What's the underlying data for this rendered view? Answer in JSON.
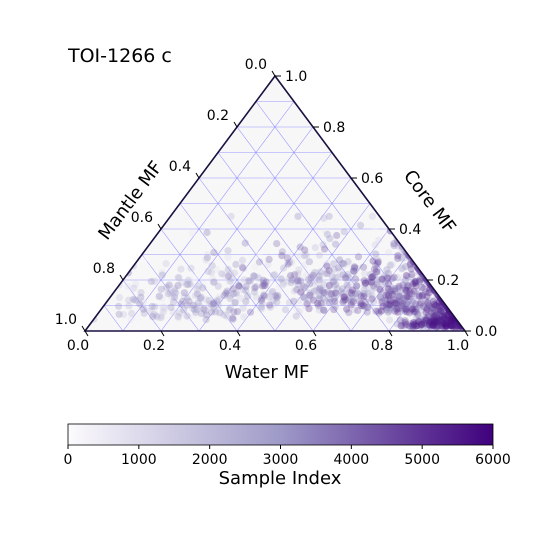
{
  "chart_data": {
    "type": "scatter",
    "title": "TOI-1266 c",
    "axes": {
      "water": {
        "label": "Water MF",
        "ticks": [
          "0.0",
          "0.2",
          "0.4",
          "0.6",
          "0.8",
          "1.0"
        ]
      },
      "core": {
        "label": "Core MF",
        "ticks": [
          "0.0",
          "0.2",
          "0.4",
          "0.6",
          "0.8",
          "1.0"
        ]
      },
      "mantle": {
        "label": "Mantle MF",
        "ticks": [
          "0.0",
          "0.2",
          "0.4",
          "0.6",
          "0.8",
          "1.0"
        ]
      }
    },
    "grid": true,
    "grid_step": 0.1,
    "colors": {
      "grid": "#8080ff",
      "frame": "#1a1040",
      "background": "#f7f7f8",
      "cmap_low": "#fcfbfd",
      "cmap_mid": "#9e9ac8",
      "cmap_high": "#3f007d"
    },
    "colorbar": {
      "label": "Sample Index",
      "ticks": [
        "0",
        "1000",
        "2000",
        "3000",
        "4000",
        "5000",
        "6000"
      ],
      "range": [
        0,
        6000
      ]
    },
    "samples": {
      "count": 1500,
      "index_range": [
        0,
        6000
      ],
      "concentration": "highest density near Water MF 1.0, Core MF 0.0, Mantle MF 0.0; spread over Core MF 0.0-0.45",
      "clusters": [
        {
          "water": 0.93,
          "core": 0.03,
          "weight": 0.35,
          "spread": 0.05
        },
        {
          "water": 0.8,
          "core": 0.1,
          "weight": 0.25,
          "spread": 0.1
        },
        {
          "water": 0.6,
          "core": 0.15,
          "weight": 0.2,
          "spread": 0.14
        },
        {
          "water": 0.4,
          "core": 0.12,
          "weight": 0.12,
          "spread": 0.16
        },
        {
          "water": 0.2,
          "core": 0.08,
          "weight": 0.08,
          "spread": 0.12
        }
      ]
    }
  }
}
